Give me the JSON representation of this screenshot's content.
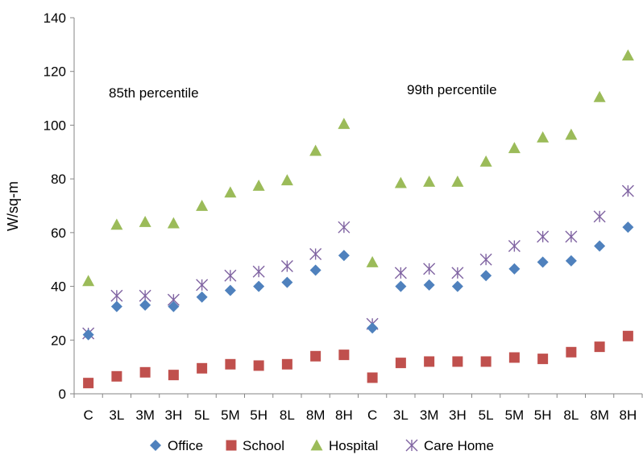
{
  "chart_data": {
    "type": "scatter",
    "title": "",
    "xlabel": "",
    "ylabel": "W/sq-m",
    "ylim": [
      0,
      140
    ],
    "yticks": [
      0,
      20,
      40,
      60,
      80,
      100,
      120,
      140
    ],
    "categories": [
      "C",
      "3L",
      "3M",
      "3H",
      "5L",
      "5M",
      "5H",
      "8L",
      "8M",
      "8H",
      "C",
      "3L",
      "3M",
      "3H",
      "5L",
      "5M",
      "5H",
      "8L",
      "8M",
      "8H"
    ],
    "grid": false,
    "legend_position": "bottom",
    "annotations": [
      "85th percentile",
      "99th percentile"
    ],
    "series": [
      {
        "name": "Office",
        "marker": "diamond",
        "color": "#4f81bd",
        "values": [
          22,
          32.5,
          33,
          32.5,
          36,
          38.5,
          40,
          41.5,
          46,
          51.5,
          24.5,
          40,
          40.5,
          40,
          44,
          46.5,
          49,
          49.5,
          55,
          62
        ]
      },
      {
        "name": "School",
        "marker": "square",
        "color": "#c0504d",
        "values": [
          4,
          6.5,
          8,
          7,
          9.5,
          11,
          10.5,
          11,
          14,
          14.5,
          6,
          11.5,
          12,
          12,
          12,
          13.5,
          13,
          15.5,
          17.5,
          21.5
        ]
      },
      {
        "name": "Hospital",
        "marker": "triangle",
        "color": "#9bbb59",
        "values": [
          42,
          63,
          64,
          63.5,
          70,
          75,
          77.5,
          79.5,
          90.5,
          100.5,
          49,
          78.5,
          79,
          79,
          86.5,
          91.5,
          95.5,
          96.5,
          110.5,
          126
        ]
      },
      {
        "name": "Care Home",
        "marker": "star",
        "color": "#8064a2",
        "values": [
          22.5,
          36.5,
          36.5,
          35,
          40.5,
          44,
          45.5,
          47.5,
          52,
          62,
          26,
          45,
          46.5,
          45,
          50,
          55,
          58.5,
          58.5,
          66,
          75.5
        ]
      }
    ]
  }
}
